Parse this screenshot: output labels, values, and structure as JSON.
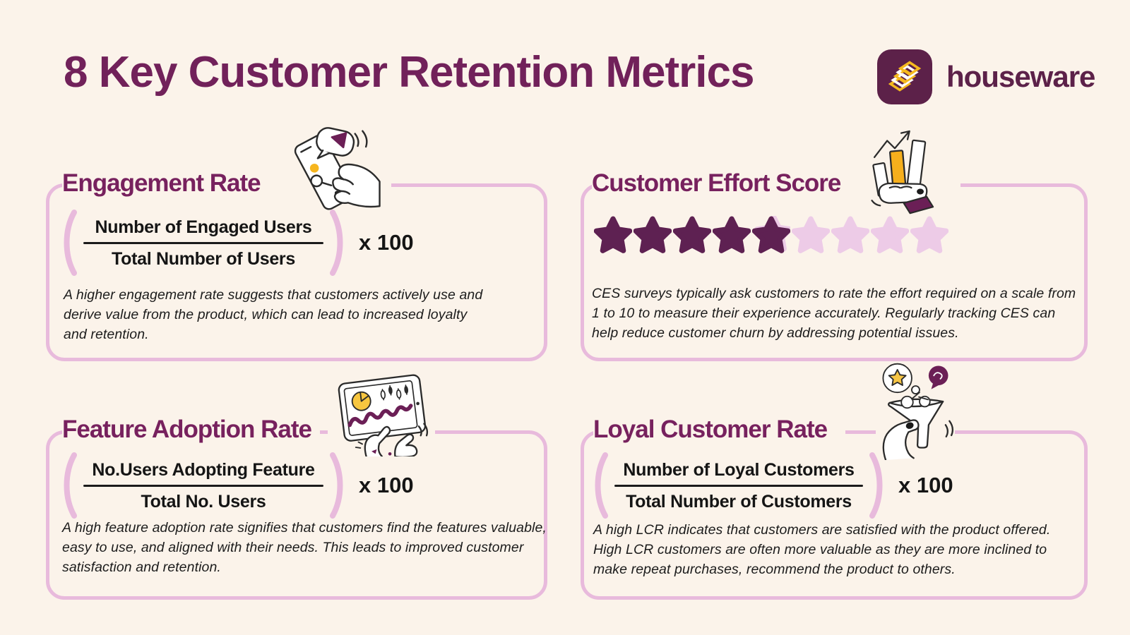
{
  "page": {
    "title": "8 Key Customer Retention Metrics"
  },
  "brand": {
    "name": "houseware",
    "logo_icon": "houseware-logo"
  },
  "colors": {
    "background": "#FBF3EA",
    "heading": "#71215A",
    "card_title": "#77215E",
    "card_border": "#E8BADC",
    "star_filled": "#5E2152",
    "star_empty": "#EDCBE7",
    "accent_yellow": "#F6B51E",
    "accent_purple": "#6B1F56",
    "logo_bg": "#5C2149",
    "text": "#1C1C1C"
  },
  "cards": [
    {
      "id": "engagement-rate",
      "title": "Engagement Rate",
      "illustration": "phone-in-hand-illustration",
      "formula": {
        "numerator": "Number of Engaged Users",
        "denominator": "Total Number of Users",
        "multiplier": "x 100"
      },
      "description": "A higher engagement rate suggests that customers actively use and derive value from the product, which can lead to increased loyalty and retention."
    },
    {
      "id": "customer-effort-score",
      "title": "Customer Effort Score",
      "illustration": "bar-chart-in-hand-illustration",
      "rating": {
        "total_stars": 9,
        "filled_stars": 5
      },
      "description": "CES surveys typically ask customers to rate the effort required on a scale from 1 to 10 to measure their experience accurately. Regularly tracking CES can help reduce customer churn by addressing potential issues."
    },
    {
      "id": "feature-adoption-rate",
      "title": "Feature Adoption Rate",
      "illustration": "tablet-analytics-illustration",
      "formula": {
        "numerator": "No.Users Adopting Feature",
        "denominator": "Total No. Users",
        "multiplier": "x 100"
      },
      "description": "A high feature adoption rate signifies that customers find the features valuable, easy to use, and aligned with their needs. This leads to improved customer satisfaction and retention."
    },
    {
      "id": "loyal-customer-rate",
      "title": "Loyal Customer Rate",
      "illustration": "funnel-in-hand-illustration",
      "formula": {
        "numerator": "Number of Loyal Customers",
        "denominator": "Total Number of Customers",
        "multiplier": "x 100"
      },
      "description": "A high LCR indicates that customers are satisfied with the product offered. High LCR customers are often more valuable as they are more inclined to make repeat purchases, recommend the product to others."
    }
  ]
}
